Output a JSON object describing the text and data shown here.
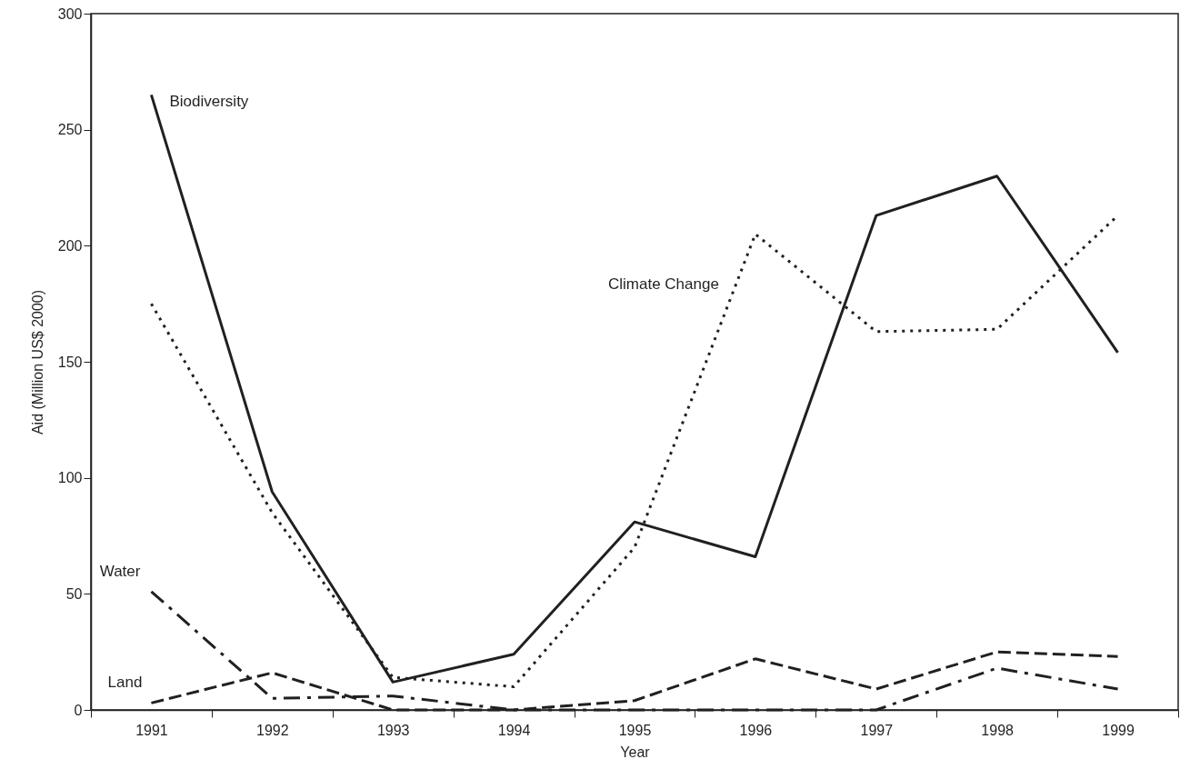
{
  "chart_data": {
    "type": "line",
    "xlabel": "Year",
    "ylabel": "Aid (Million US$ 2000)",
    "categories": [
      "1991",
      "1992",
      "1993",
      "1994",
      "1995",
      "1996",
      "1997",
      "1998",
      "1999"
    ],
    "series": [
      {
        "name": "Biodiversity",
        "color": "#231f20",
        "line_style": "solid",
        "values": [
          265,
          94,
          12,
          24,
          81,
          66,
          213,
          230,
          154
        ]
      },
      {
        "name": "Climate Change",
        "color": "#231f20",
        "line_style": "dotted",
        "values": [
          175,
          85,
          14,
          10,
          70,
          205,
          163,
          164,
          213
        ]
      },
      {
        "name": "Water",
        "color": "#231f20",
        "line_style": "dashdot",
        "values": [
          51,
          5,
          6,
          0,
          0,
          0,
          0,
          18,
          9
        ]
      },
      {
        "name": "Land",
        "color": "#231f20",
        "line_style": "dashed",
        "values": [
          3,
          16,
          0,
          0,
          4,
          22,
          9,
          25,
          23
        ]
      }
    ],
    "ylim": [
      0,
      300
    ],
    "yticks": [
      0,
      50,
      100,
      150,
      200,
      250,
      300
    ],
    "grid": false,
    "marker": "none"
  }
}
